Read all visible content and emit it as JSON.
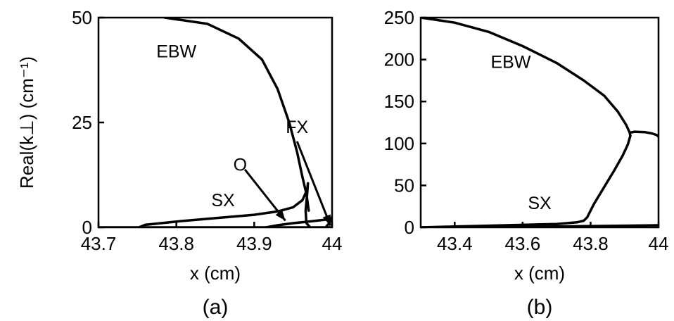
{
  "chart_data": [
    {
      "type": "line",
      "panel_label": "(a)",
      "xlabel": "x (cm)",
      "ylabel": "Real(k⊥) (cm⁻¹)",
      "xlim": [
        43.7,
        44.0
      ],
      "ylim": [
        0,
        50
      ],
      "xticks": [
        43.7,
        43.8,
        43.9,
        44.0
      ],
      "xtick_labels": [
        "43.7",
        "43.8",
        "43.9",
        "44"
      ],
      "yticks": [
        0,
        25,
        50
      ],
      "ytick_labels": [
        "0",
        "25",
        "50"
      ],
      "grid": false,
      "legend": "none",
      "series": [
        {
          "x": [
            43.785,
            43.84,
            43.88,
            43.91,
            43.93,
            43.945,
            43.955,
            43.962,
            43.967,
            43.97
          ],
          "y": [
            50,
            48.5,
            45,
            40,
            33,
            25,
            18,
            12,
            8,
            4
          ]
        },
        {
          "x": [
            43.752,
            43.76,
            43.8,
            43.85,
            43.9,
            43.93,
            43.95,
            43.962,
            43.968,
            43.969,
            43.968,
            43.966,
            43.967,
            43.972
          ],
          "y": [
            0,
            0.6,
            1.4,
            2.2,
            3.0,
            3.8,
            4.8,
            6.5,
            9.0,
            10.5,
            8.0,
            4.0,
            1.0,
            0
          ]
        },
        {
          "x": [
            43.915,
            43.93,
            43.95,
            43.97,
            43.99,
            44.0
          ],
          "y": [
            0,
            0.5,
            1.0,
            1.4,
            1.8,
            2.0
          ]
        },
        {
          "x": [
            43.7,
            43.8,
            43.9,
            44.0
          ],
          "y": [
            0,
            0,
            0,
            0
          ]
        },
        {
          "x": [
            43.992,
            43.997,
            44.0
          ],
          "y": [
            0,
            1.2,
            2.5
          ]
        }
      ],
      "annotations": [
        {
          "text": "EBW",
          "x": 43.8,
          "y": 40.5
        },
        {
          "text": "FX",
          "x": 43.955,
          "y": 22.5
        },
        {
          "text": "O",
          "x": 43.882,
          "y": 13.5
        },
        {
          "text": "SX",
          "x": 43.86,
          "y": 5.0
        }
      ],
      "arrows": [
        {
          "from": [
            43.955,
            20.5
          ],
          "to": [
            43.998,
            0.4
          ]
        },
        {
          "from": [
            43.888,
            13.8
          ],
          "to": [
            43.94,
            1.6
          ]
        }
      ]
    },
    {
      "type": "line",
      "panel_label": "(b)",
      "xlabel": "x (cm)",
      "ylabel": "",
      "xlim": [
        43.3,
        44.0
      ],
      "ylim": [
        0,
        250
      ],
      "xticks": [
        43.4,
        43.6,
        43.8,
        44.0
      ],
      "xtick_labels": [
        "43.4",
        "43.6",
        "43.8",
        "44"
      ],
      "yticks": [
        0,
        50,
        100,
        150,
        200,
        250
      ],
      "ytick_labels": [
        "0",
        "50",
        "100",
        "150",
        "200",
        "250"
      ],
      "grid": false,
      "legend": "none",
      "series": [
        {
          "x": [
            43.3,
            43.4,
            43.5,
            43.6,
            43.7,
            43.78,
            43.84,
            43.88,
            43.905,
            43.915,
            43.917
          ],
          "y": [
            250,
            244,
            233,
            216,
            196,
            175,
            157,
            138,
            122,
            113,
            109
          ]
        },
        {
          "x": [
            43.3,
            43.4,
            43.5,
            43.6,
            43.7,
            43.76,
            43.78,
            43.79,
            43.81,
            43.84,
            43.87,
            43.895,
            43.91,
            43.917
          ],
          "y": [
            0,
            1,
            2,
            3,
            4,
            6,
            8,
            12,
            28,
            48,
            68,
            86,
            99,
            109
          ]
        },
        {
          "x": [
            43.917,
            43.93,
            43.96,
            43.98,
            43.995,
            44.0
          ],
          "y": [
            113,
            114,
            113.5,
            112,
            110,
            108
          ]
        },
        {
          "x": [
            43.3,
            43.5,
            43.7,
            43.9,
            44.0
          ],
          "y": [
            0,
            0.5,
            1.0,
            2.0,
            2.5
          ]
        }
      ],
      "annotations": [
        {
          "text": "EBW",
          "x": 43.565,
          "y": 190
        },
        {
          "text": "SX",
          "x": 43.65,
          "y": 22
        }
      ],
      "arrows": []
    }
  ]
}
